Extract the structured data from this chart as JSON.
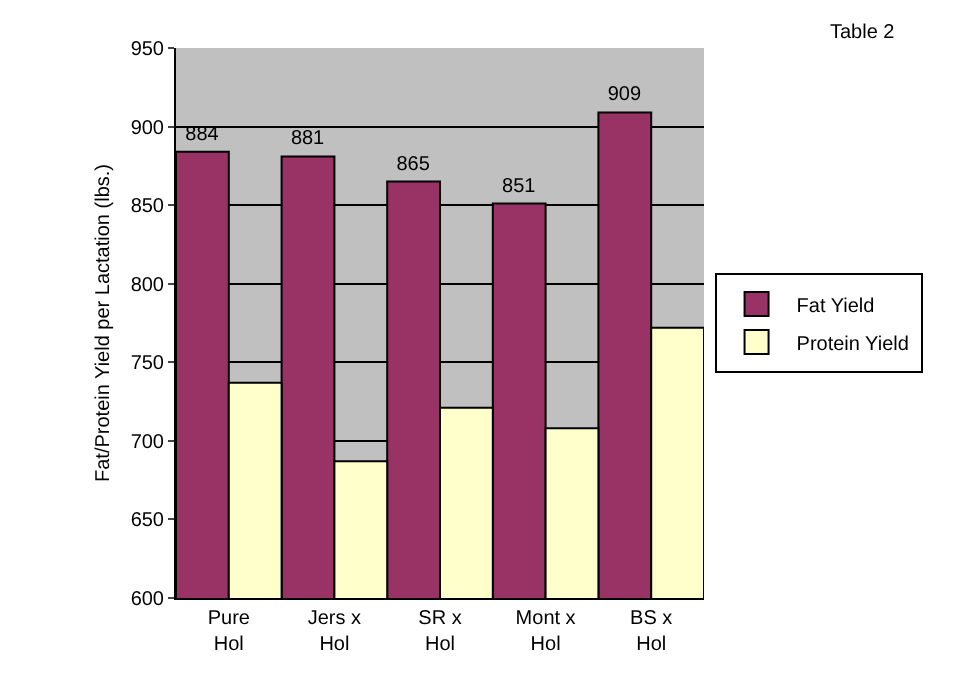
{
  "chart_data": {
    "type": "bar",
    "ylabel": "Fat/Protein Yield per Lactation (lbs.)",
    "annotations": [
      "Table 2"
    ],
    "categories": [
      "Pure Hol",
      "Jers x Hol",
      "SR x Hol",
      "Mont x Hol",
      "BS x Hol"
    ],
    "series": [
      {
        "name": "Fat Yield",
        "color": "#993366",
        "values": [
          884,
          881,
          865,
          851,
          909
        ],
        "value_labels": [
          "884",
          "881",
          "865",
          "851",
          "909"
        ]
      },
      {
        "name": "Protein Yield",
        "color": "#ffffcc",
        "values": [
          737,
          687,
          721,
          708,
          772
        ]
      }
    ],
    "ylim": [
      600,
      950
    ],
    "yticks": [
      600,
      650,
      700,
      750,
      800,
      850,
      900,
      950
    ],
    "grid": "y",
    "legend": "right"
  }
}
